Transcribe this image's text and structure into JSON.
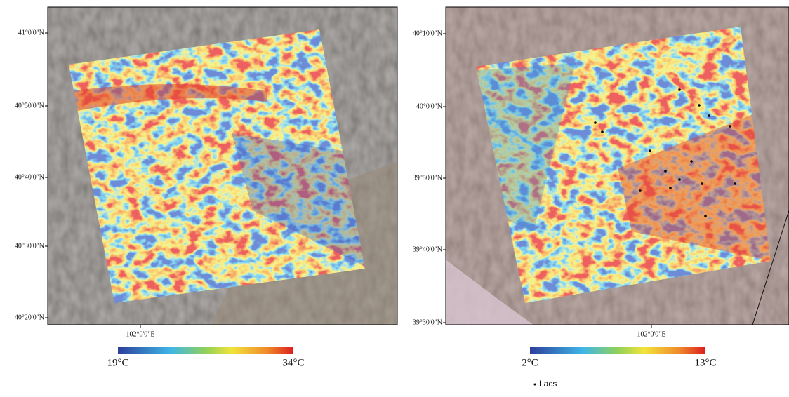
{
  "panels": [
    {
      "lat_labels": [
        "41°0'0\"N",
        "40°50'0\"N",
        "40°40'0\"N",
        "40°30'0\"N",
        "40°20'0\"N"
      ],
      "lon_label": "102°0'0\"E",
      "colorbar": {
        "min_label": "19°C",
        "max_label": "34°C"
      }
    },
    {
      "lat_labels": [
        "40°10'0\"N",
        "40°0'0\"N",
        "39°50'0\"N",
        "39°40'0\"N",
        "39°30'0\"N"
      ],
      "lon_label": "102°0'0\"E",
      "colorbar": {
        "min_label": "2°C",
        "max_label": "13°C"
      }
    }
  ],
  "legend": {
    "label": "Lacs"
  }
}
